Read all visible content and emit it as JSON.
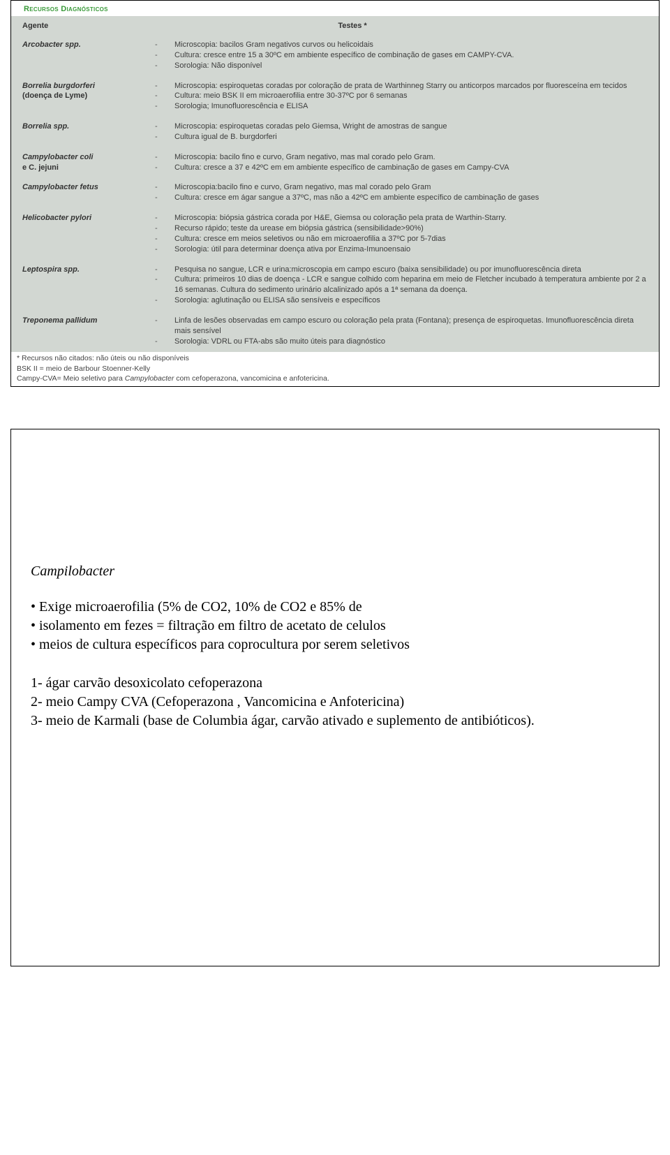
{
  "top": {
    "section_title": "Recursos Diagnósticos",
    "header_agent": "Agente",
    "header_tests": "Testes *",
    "rows": [
      {
        "agent": "Arcobacter spp.",
        "sub": "",
        "tests": [
          "Microscopia: bacilos Gram negativos curvos ou helicoidais",
          "Cultura: cresce entre 15 a 30ºC em ambiente específico de combinação de gases em CAMPY-CVA.",
          "Sorologia: Não disponível"
        ]
      },
      {
        "agent": "Borrelia burgdorferi",
        "sub": "(doença de Lyme)",
        "tests": [
          "Microscopia: espiroquetas coradas por coloração de prata de Warthinneg Starry ou anticorpos marcados por fluoresceína em tecidos",
          "Cultura: meio BSK II em microaerofilia entre 30-37ºC por 6 semanas",
          "Sorologia; Imunofluorescência e ELISA"
        ]
      },
      {
        "agent": "Borrelia spp.",
        "sub": "",
        "tests": [
          "Microscopia: espiroquetas coradas pelo Giemsa, Wright de amostras de sangue",
          "Cultura igual de B. burgdorferi"
        ]
      },
      {
        "agent": "Campylobacter coli",
        "sub": "e C. jejuni",
        "tests": [
          "Microscopia: bacilo fino e curvo, Gram negativo, mas mal corado pelo Gram.",
          "Cultura: cresce a 37 e 42ºC em em ambiente específico de cambinação de gases em Campy-CVA"
        ]
      },
      {
        "agent": "Campylobacter fetus",
        "sub": "",
        "tests": [
          "Microscopia:bacilo fino e curvo, Gram negativo, mas mal corado pelo Gram",
          "Cultura: cresce em ágar sangue a 37ºC, mas não a 42ºC em ambiente específico de cambinação de gases"
        ]
      },
      {
        "agent": "Helicobacter pylori",
        "sub": "",
        "tests": [
          "Microscopia: biópsia gástrica corada por H&E, Giemsa ou coloração pela prata de Warthin-Starry.",
          "Recurso rápido; teste da urease em biópsia gástrica (sensibilidade>90%)",
          "Cultura: cresce em meios seletivos ou não em microaerofilia a 37ºC por 5-7dias",
          "Sorologia: útil para determinar doença ativa por Enzima-Imunoensaio"
        ]
      },
      {
        "agent": "Leptospira spp.",
        "sub": "",
        "tests": [
          "Pesquisa no sangue, LCR e urina:microscopia em campo escuro (baixa sensibilidade) ou por imunofluorescência direta",
          "Cultura: primeiros 10 dias de doença - LCR e sangue colhido com heparina em meio de Fletcher incubado à temperatura ambiente por 2 a 16 semanas. Cultura do sedimento urinário alcalinizado após a 1ª semana da doença.",
          "Sorologia: aglutinação ou ELISA são sensíveis e específicos"
        ]
      },
      {
        "agent": "Treponema pallidum",
        "sub": "",
        "tests": [
          "Linfa de lesões observadas em campo escuro ou coloração pela prata (Fontana); presença de espiroquetas. Imunofluorescência direta mais sensível",
          "Sorologia: VDRL ou FTA-abs são muito úteis para diagnóstico"
        ]
      }
    ],
    "footnotes": {
      "l1": "* Recursos não citados: não úteis ou não disponíveis",
      "l2": "BSK II = meio de Barbour Stoenner-Kelly",
      "l3a": "Campy-CVA= Meio seletivo para ",
      "l3b": "Campylobacter",
      "l3c": " com cefoperazona, vancomicina e anfotericina."
    }
  },
  "bottom": {
    "title": "Campilobacter",
    "bullets": [
      "Exige microaerofilia (5% de CO2, 10% de CO2 e 85% de",
      "isolamento em fezes = filtração em filtro de acetato de celulos",
      "meios de cultura específicos para coprocultura por serem seletivos"
    ],
    "nums": [
      "1-  ágar carvão desoxicolato cefoperazona",
      "2- meio Campy CVA (Cefoperazona , Vancomicina e Anfotericina)",
      "3- meio de Karmali (base de Columbia ágar, carvão ativado e suplemento de antibióticos)."
    ]
  }
}
